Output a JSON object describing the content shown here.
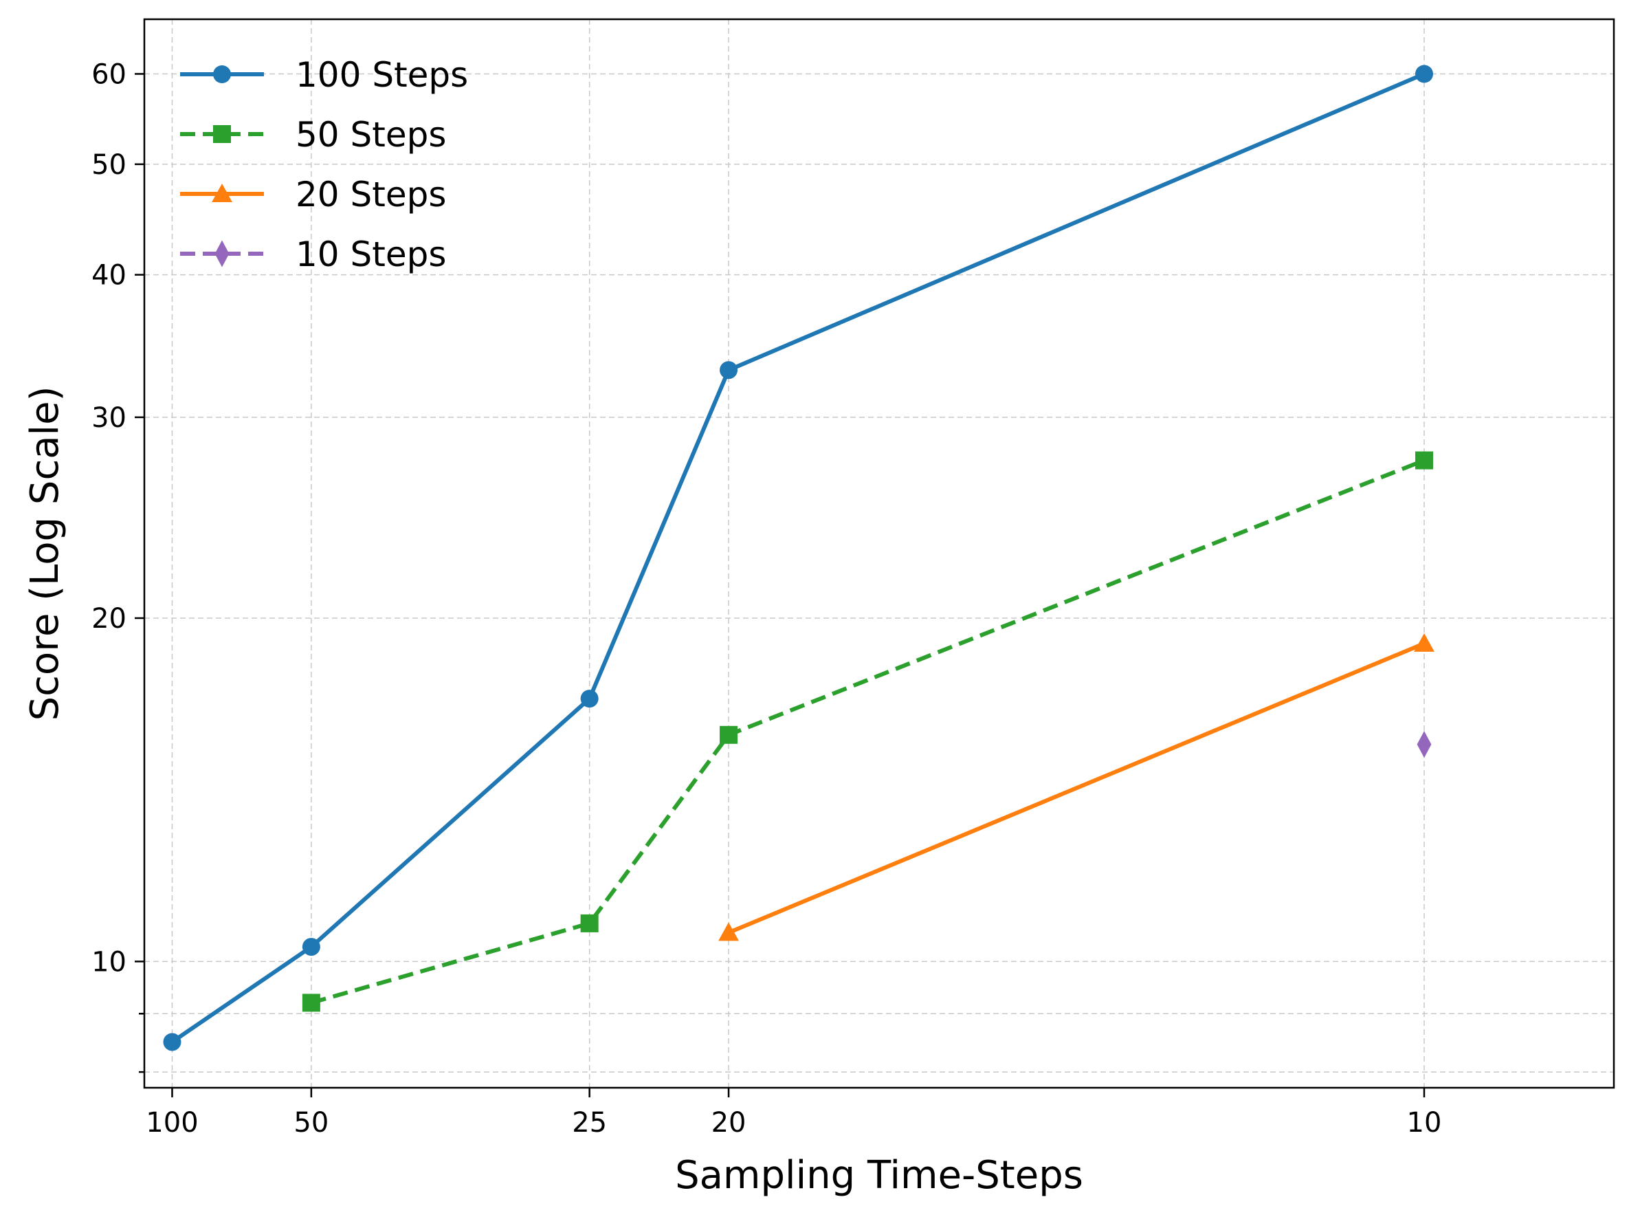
{
  "chart_data": {
    "type": "line",
    "xlabel": "Sampling Time-Steps",
    "ylabel": "Score (Log Scale)",
    "x_scale": "reciprocal",
    "y_scale": "log",
    "x_ticks": [
      100,
      50,
      25,
      20,
      10
    ],
    "y_ticks": [
      10,
      20,
      30,
      40,
      50,
      60
    ],
    "y_minor_ticks": [
      8,
      9
    ],
    "xlim": [
      125,
      8.8
    ],
    "ylim": [
      7.75,
      67
    ],
    "grid": true,
    "legend_position": "top-left",
    "series": [
      {
        "name": "100 Steps",
        "color": "#1f77b4",
        "line_style": "solid",
        "marker": "circle",
        "points": [
          [
            100,
            8.5
          ],
          [
            50,
            10.3
          ],
          [
            25,
            17.0
          ],
          [
            20,
            33.0
          ],
          [
            10,
            60.0
          ]
        ]
      },
      {
        "name": "50 Steps",
        "color": "#2ca02c",
        "line_style": "dashed",
        "marker": "square",
        "points": [
          [
            50,
            9.2
          ],
          [
            25,
            10.8
          ],
          [
            20,
            15.8
          ],
          [
            10,
            27.5
          ]
        ]
      },
      {
        "name": "20 Steps",
        "color": "#ff7f0e",
        "line_style": "solid",
        "marker": "triangle",
        "points": [
          [
            20,
            10.6
          ],
          [
            10,
            19.0
          ]
        ]
      },
      {
        "name": "10 Steps",
        "color": "#9467bd",
        "line_style": "dashed",
        "marker": "diamond",
        "points": [
          [
            10,
            15.5
          ]
        ]
      }
    ]
  }
}
